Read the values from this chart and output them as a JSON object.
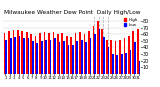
{
  "title": "Milwaukee Weather Dew Point",
  "subtitle": "Daily High/Low",
  "days": [
    1,
    2,
    3,
    4,
    5,
    6,
    7,
    8,
    9,
    10,
    11,
    12,
    13,
    14,
    15,
    16,
    17,
    18,
    19,
    20,
    21,
    22,
    23,
    24,
    25,
    26,
    27,
    28,
    29,
    30,
    31
  ],
  "highs": [
    62,
    65,
    67,
    66,
    65,
    64,
    60,
    58,
    62,
    63,
    62,
    63,
    60,
    62,
    58,
    56,
    62,
    63,
    60,
    65,
    72,
    80,
    68,
    52,
    52,
    50,
    52,
    55,
    58,
    65,
    68
  ],
  "lows": [
    52,
    54,
    56,
    58,
    55,
    54,
    50,
    46,
    50,
    52,
    51,
    54,
    48,
    50,
    44,
    43,
    50,
    52,
    48,
    54,
    60,
    68,
    56,
    40,
    30,
    28,
    30,
    32,
    36,
    48,
    20
  ],
  "bar_width": 0.38,
  "high_color": "#ff0000",
  "low_color": "#0000ff",
  "background_color": "#ffffff",
  "ylim": [
    0,
    88
  ],
  "ytick_values": [
    10,
    20,
    30,
    40,
    50,
    60,
    70,
    80
  ],
  "ytick_fontsize": 3.5,
  "xtick_fontsize": 2.8,
  "title_fontsize": 4.2,
  "legend_fontsize": 3.0,
  "grid_color": "#cccccc",
  "dashed_lines_at": [
    21,
    22,
    23,
    24
  ]
}
